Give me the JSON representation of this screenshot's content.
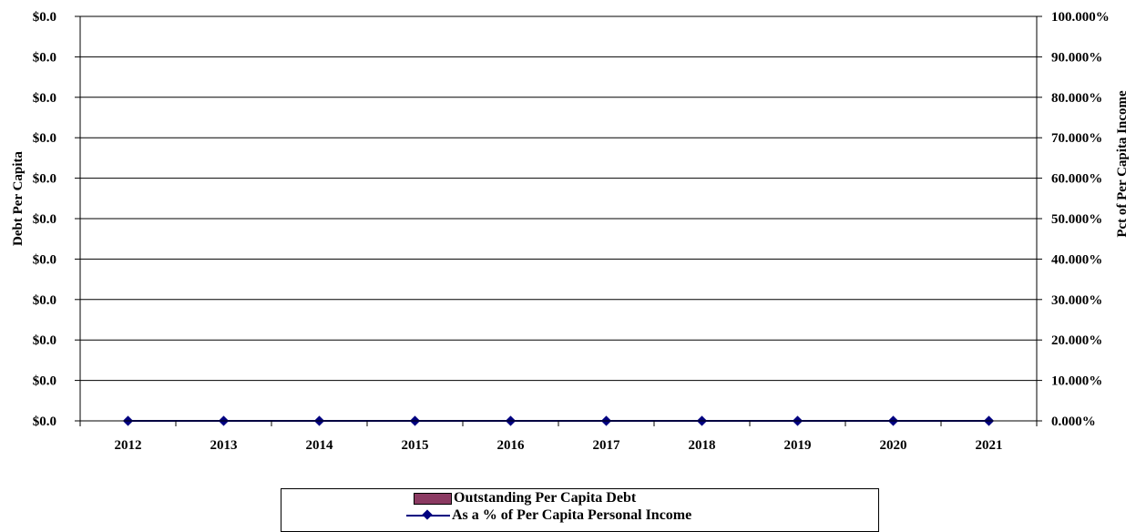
{
  "chart_data": {
    "type": "bar",
    "categories": [
      "2012",
      "2013",
      "2014",
      "2015",
      "2016",
      "2017",
      "2018",
      "2019",
      "2020",
      "2021"
    ],
    "series": [
      {
        "name": "Outstanding Per Capita Debt",
        "kind": "bar",
        "axis": "left",
        "color": "#8B3A62",
        "values": [
          0,
          0,
          0,
          0,
          0,
          0,
          0,
          0,
          0,
          0
        ]
      },
      {
        "name": "As a % of Per Capita Personal Income",
        "kind": "line",
        "axis": "right",
        "color": "#000080",
        "values": [
          0,
          0,
          0,
          0,
          0,
          0,
          0,
          0,
          0,
          0
        ]
      }
    ],
    "left_axis": {
      "label": "Debt Per Capita",
      "tick_labels": [
        "$0.0",
        "$0.0",
        "$0.0",
        "$0.0",
        "$0.0",
        "$0.0",
        "$0.0",
        "$0.0",
        "$0.0",
        "$0.0",
        "$0.0"
      ]
    },
    "right_axis": {
      "label": "Pct of Per Capita Income",
      "ylim": [
        0,
        100
      ],
      "tick_labels": [
        "0.000%",
        "10.000%",
        "20.000%",
        "30.000%",
        "40.000%",
        "50.000%",
        "60.000%",
        "70.000%",
        "80.000%",
        "90.000%",
        "100.000%"
      ]
    },
    "grid": true,
    "legend_position": "bottom"
  }
}
